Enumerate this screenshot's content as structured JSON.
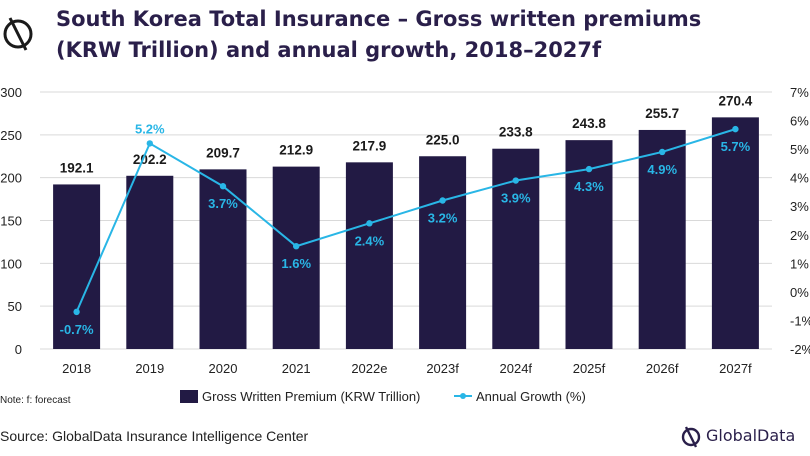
{
  "title": {
    "line1": "South Korea Total Insurance – Gross written premiums",
    "line2": "(KRW Trillion) and annual growth, 2018–2027f"
  },
  "note": "Note: f: forecast",
  "source": "Source: GlobalData Insurance Intelligence Center",
  "logo_text": "GlobalData",
  "colors": {
    "bar": "#221a44",
    "line": "#29b6e6",
    "title": "#2a1f4a",
    "grid": "#d9d9d9"
  },
  "chart_data": {
    "type": "bar",
    "categories": [
      "2018",
      "2019",
      "2020",
      "2021",
      "2022e",
      "2023f",
      "2024f",
      "2025f",
      "2026f",
      "2027f"
    ],
    "series": [
      {
        "name": "Gross Written Premium (KRW Trillion)",
        "type": "bar",
        "axis": "left",
        "values": [
          192.1,
          202.2,
          209.7,
          212.9,
          217.9,
          225.0,
          233.8,
          243.8,
          255.7,
          270.4
        ],
        "labels": [
          "192.1",
          "202.2",
          "209.7",
          "212.9",
          "217.9",
          "225.0",
          "233.8",
          "243.8",
          "255.7",
          "270.4"
        ]
      },
      {
        "name": "Annual Growth (%)",
        "type": "line",
        "axis": "right",
        "values": [
          -0.7,
          5.2,
          3.7,
          1.6,
          2.4,
          3.2,
          3.9,
          4.3,
          4.9,
          5.7
        ],
        "labels": [
          "-0.7%",
          "5.2%",
          "3.7%",
          "1.6%",
          "2.4%",
          "3.2%",
          "3.9%",
          "4.3%",
          "4.9%",
          "5.7%"
        ]
      }
    ],
    "ylim_left": [
      0,
      300
    ],
    "yticks_left": [
      "0",
      "50",
      "100",
      "150",
      "200",
      "250",
      "300"
    ],
    "ylim_right": [
      -2,
      7
    ],
    "yticks_right": [
      "-2%",
      "-1%",
      "0%",
      "1%",
      "2%",
      "3%",
      "4%",
      "5%",
      "6%",
      "7%"
    ],
    "grid": true,
    "legend_position": "bottom"
  }
}
